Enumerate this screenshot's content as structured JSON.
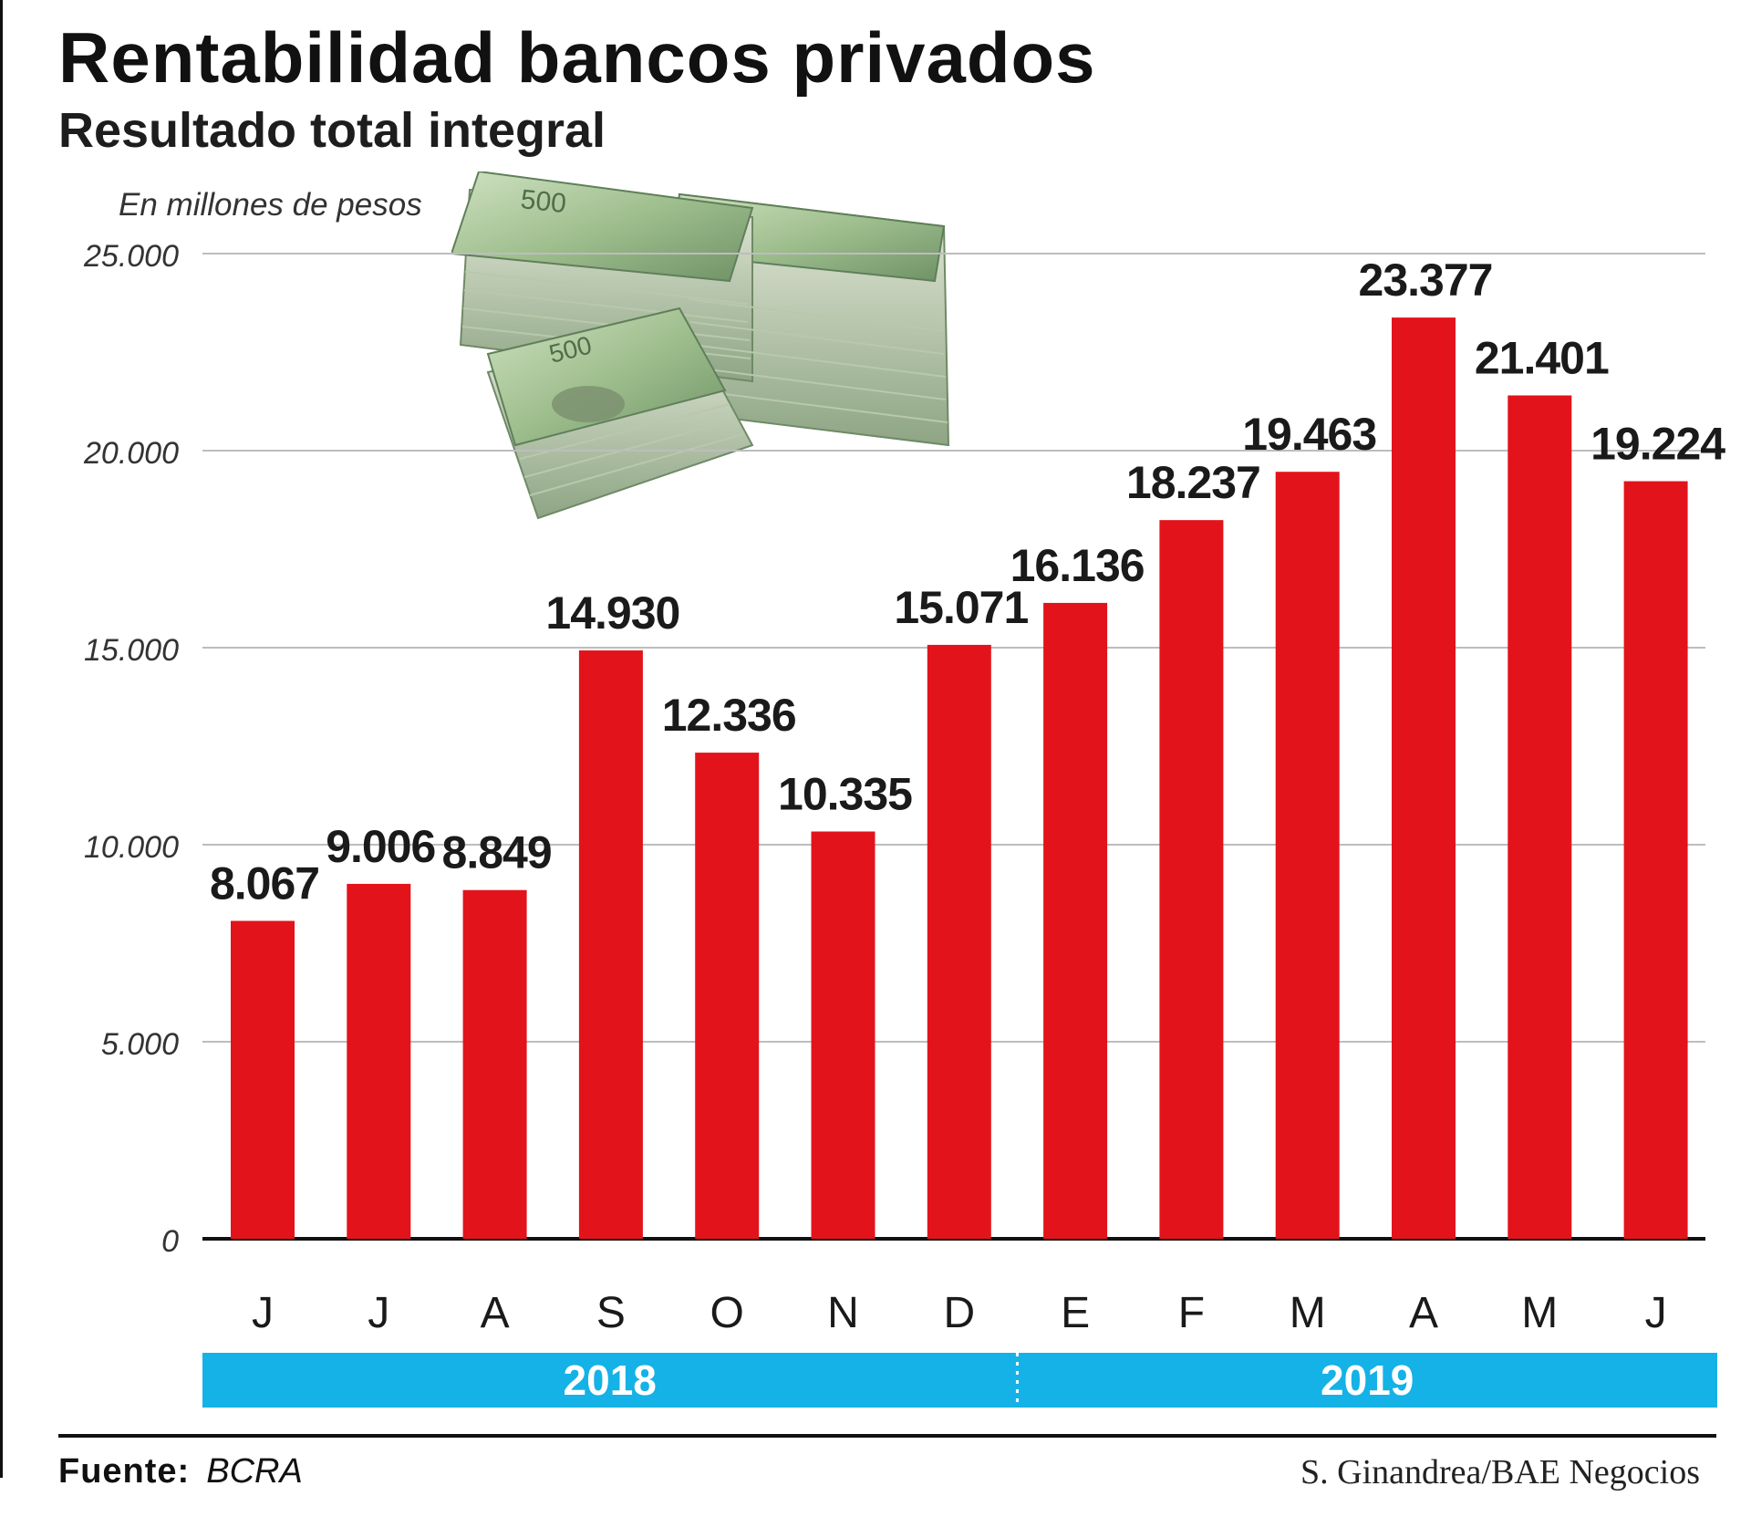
{
  "title": "Rentabilidad bancos privados",
  "subtitle": "Resultado total integral",
  "unit_note": "En millones de pesos",
  "source": {
    "label": "Fuente:",
    "value": "BCRA"
  },
  "credit": "S. Ginandrea/BAE Negocios",
  "money_illustration": {
    "icon": "banknote-stack-icon",
    "denomination": "500"
  },
  "colors": {
    "bar": "#e3131b",
    "year_band": "#14b2e6",
    "grid": "#bdbdbd"
  },
  "chart_data": {
    "type": "bar",
    "title": "Rentabilidad bancos privados",
    "subtitle": "Resultado total integral",
    "ylabel": "En millones de pesos",
    "xlabel": "",
    "categories": [
      "J",
      "J",
      "A",
      "S",
      "O",
      "N",
      "D",
      "E",
      "F",
      "M",
      "A",
      "M",
      "J"
    ],
    "values": [
      8067,
      9006,
      8849,
      14930,
      12336,
      10335,
      15071,
      16136,
      18237,
      19463,
      23377,
      21401,
      19224
    ],
    "value_labels": [
      "8.067",
      "9.006",
      "8.849",
      "14.930",
      "12.336",
      "10.335",
      "15.071",
      "16.136",
      "18.237",
      "19.463",
      "23.377",
      "21.401",
      "19.224"
    ],
    "ylim": [
      0,
      25000
    ],
    "yticks": [
      0,
      5000,
      10000,
      15000,
      20000,
      25000
    ],
    "ytick_labels": [
      "0",
      "5.000",
      "10.000",
      "15.000",
      "20.000",
      "25.000"
    ],
    "grid": true,
    "year_groups": [
      {
        "label": "2018",
        "start": 0,
        "end": 6
      },
      {
        "label": "2019",
        "start": 7,
        "end": 12
      }
    ]
  }
}
